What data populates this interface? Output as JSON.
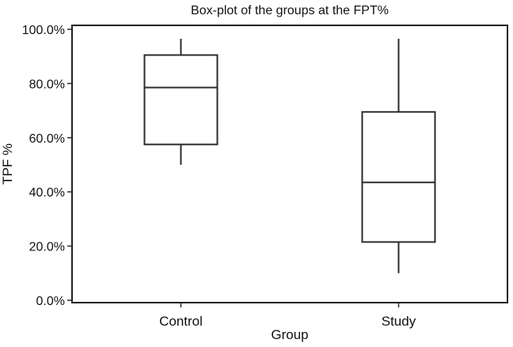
{
  "chart_data": {
    "type": "box",
    "title": "Box-plot of the groups at the FPT%",
    "xlabel": "Group",
    "ylabel": "TPF %",
    "categories": [
      "Control",
      "Study"
    ],
    "boxes": [
      {
        "category": "Control",
        "min": 50.0,
        "q1": 57.5,
        "median": 78.5,
        "q3": 90.5,
        "max": 96.5
      },
      {
        "category": "Study",
        "min": 10.0,
        "q1": 21.5,
        "median": 43.5,
        "q3": 69.5,
        "max": 96.5
      }
    ],
    "ylim": [
      0,
      100
    ],
    "yticks": [
      {
        "value": 0,
        "label": "0.0%"
      },
      {
        "value": 20,
        "label": "20.0%"
      },
      {
        "value": 40,
        "label": "40.0%"
      },
      {
        "value": 60,
        "label": "60.0%"
      },
      {
        "value": 80,
        "label": "80.0%"
      },
      {
        "value": 100,
        "label": "100.0%"
      }
    ],
    "grid": false,
    "legend": "none"
  }
}
